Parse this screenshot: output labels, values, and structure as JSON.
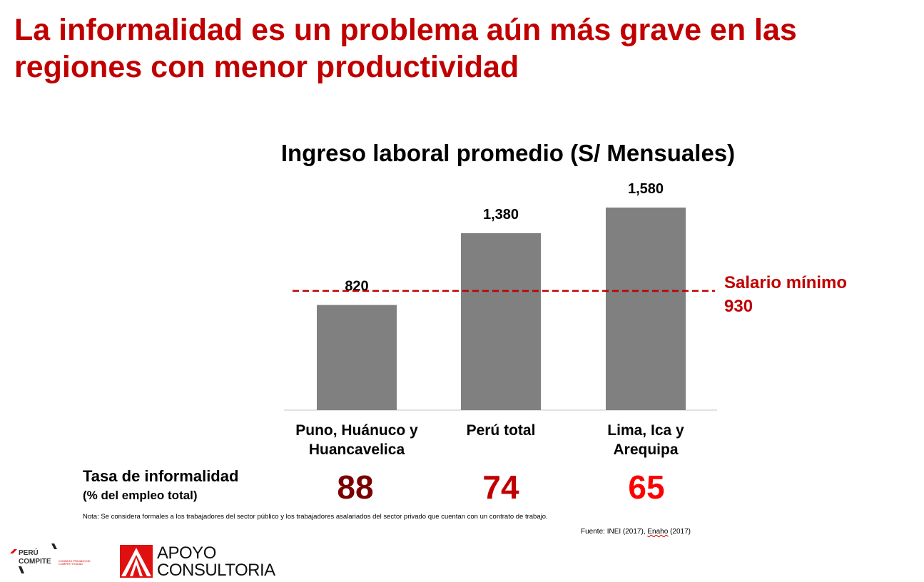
{
  "title": "La informalidad es un problema aún más grave en las regiones con menor productividad",
  "chart_data": {
    "type": "bar",
    "title": "Ingreso laboral promedio (S/ Mensuales)",
    "categories": [
      "Puno, Huánuco y Huancavelica",
      "Perú total",
      "Lima, Ica y Arequipa"
    ],
    "values": [
      820,
      1380,
      1580
    ],
    "data_labels": [
      "820",
      "1,380",
      "1,580"
    ],
    "ylim": [
      0,
      1580
    ],
    "grid": false,
    "bar_color": "#808080",
    "reference_line": {
      "label": "Salario mínimo",
      "value": 930,
      "value_label": "930",
      "style": "dashed",
      "color": "#c00000"
    }
  },
  "informality": {
    "label": "Tasa de informalidad",
    "sublabel": "(% del empleo total)",
    "values": [
      "88",
      "74",
      "65"
    ],
    "colors": [
      "#7a0000",
      "#c00000",
      "#ff0000"
    ]
  },
  "note": "Nota: Se considera formales a los trabajadores del sector público y los trabajadores asalariados del sector privado que cuentan con un contrato de trabajo.",
  "source_prefix": "Fuente: INEI (2017), ",
  "source_underlined": "Enaho",
  "source_suffix": " (2017)",
  "logos": {
    "peru_compite": [
      "PERÚ",
      "COMPITE",
      "CONSEJO PRIVADO DE COMPETITIVIDAD"
    ],
    "apoyo": [
      "APOYO",
      "CONSULTORIA"
    ]
  }
}
